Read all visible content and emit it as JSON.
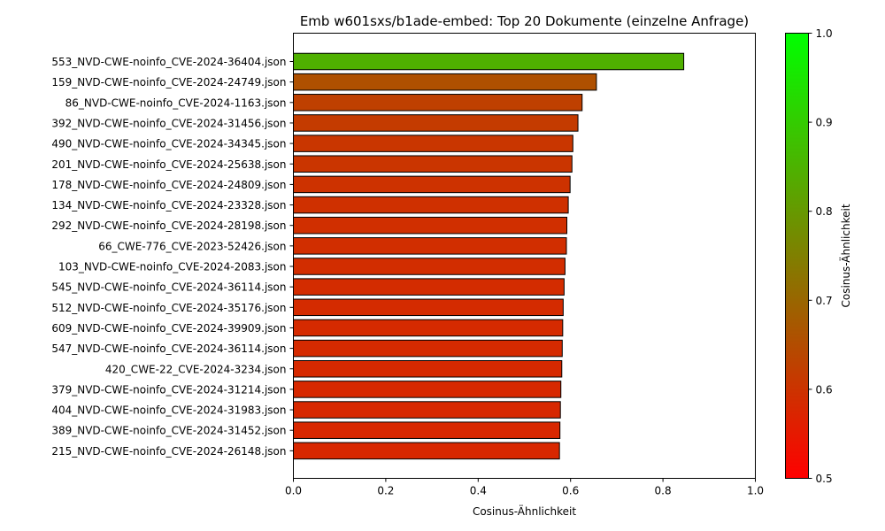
{
  "chart_data": {
    "type": "bar",
    "orientation": "horizontal",
    "title": "Emb w601sxs/b1ade-embed: Top 20 Dokumente (einzelne Anfrage)",
    "xlabel": "Cosinus-Ähnlichkeit",
    "ylabel": "",
    "xlim": [
      0.0,
      1.0
    ],
    "xticks": [
      "0.0",
      "0.2",
      "0.4",
      "0.6",
      "0.8",
      "1.0"
    ],
    "categories": [
      "553_NVD-CWE-noinfo_CVE-2024-36404.json",
      "159_NVD-CWE-noinfo_CVE-2024-24749.json",
      "86_NVD-CWE-noinfo_CVE-2024-1163.json",
      "392_NVD-CWE-noinfo_CVE-2024-31456.json",
      "490_NVD-CWE-noinfo_CVE-2024-34345.json",
      "201_NVD-CWE-noinfo_CVE-2024-25638.json",
      "178_NVD-CWE-noinfo_CVE-2024-24809.json",
      "134_NVD-CWE-noinfo_CVE-2024-23328.json",
      "292_NVD-CWE-noinfo_CVE-2024-28198.json",
      "66_CWE-776_CVE-2023-52426.json",
      "103_NVD-CWE-noinfo_CVE-2024-2083.json",
      "545_NVD-CWE-noinfo_CVE-2024-36114.json",
      "512_NVD-CWE-noinfo_CVE-2024-35176.json",
      "609_NVD-CWE-noinfo_CVE-2024-39909.json",
      "547_NVD-CWE-noinfo_CVE-2024-36114.json",
      "420_CWE-22_CVE-2024-3234.json",
      "379_NVD-CWE-noinfo_CVE-2024-31214.json",
      "404_NVD-CWE-noinfo_CVE-2024-31983.json",
      "389_NVD-CWE-noinfo_CVE-2024-31452.json",
      "215_NVD-CWE-noinfo_CVE-2024-26148.json"
    ],
    "values": [
      0.845,
      0.656,
      0.625,
      0.616,
      0.605,
      0.603,
      0.599,
      0.595,
      0.592,
      0.591,
      0.588,
      0.586,
      0.584,
      0.583,
      0.582,
      0.581,
      0.579,
      0.578,
      0.577,
      0.576
    ],
    "colorbar": {
      "label": "Cosinus-Ähnlichkeit",
      "range": [
        0.5,
        1.0
      ],
      "ticks": [
        "0.5",
        "0.6",
        "0.7",
        "0.8",
        "0.9",
        "1.0"
      ],
      "color_low": "#ff0000",
      "color_high": "#00ff00"
    },
    "bar_edge_color": "#000000",
    "grid": false,
    "legend": "none"
  }
}
